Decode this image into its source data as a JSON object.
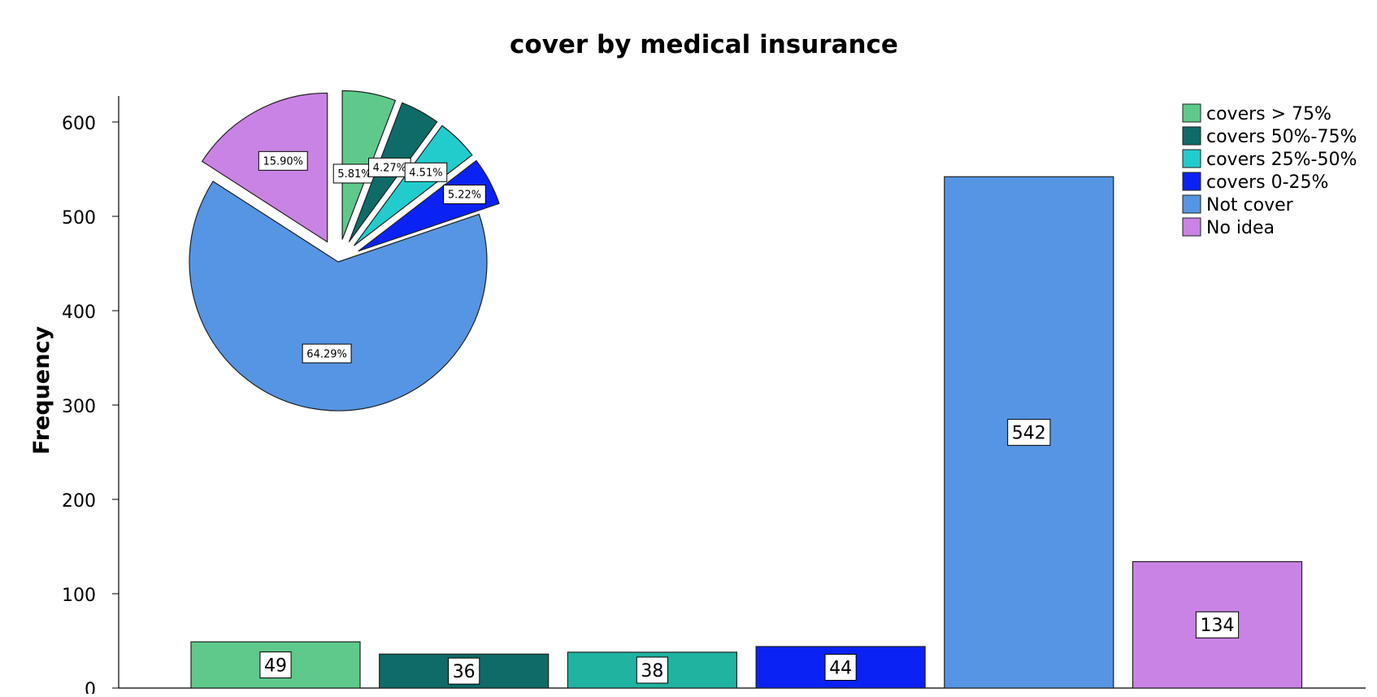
{
  "chart_data": [
    {
      "type": "bar",
      "title": "cover by medical insurance",
      "xlabel": "",
      "ylabel": "Frequency",
      "ylim": [
        0,
        630
      ],
      "yticks": [
        0,
        100,
        200,
        300,
        400,
        500,
        600
      ],
      "grid": false,
      "legend_position": "top-right",
      "categories": [
        "covers > 75%",
        "covers 50%-75%",
        "covers 25%-50%",
        "covers 0-25%",
        "Not cover",
        "No idea"
      ],
      "values": [
        49,
        36,
        38,
        44,
        542,
        134
      ],
      "colors": [
        "#5ec98a",
        "#0e6b67",
        "#1fb3a0",
        "#0b22f5",
        "#5595e3",
        "#c983e5"
      ],
      "data_labels": [
        "49",
        "36",
        "38",
        "44",
        "542",
        "134"
      ]
    },
    {
      "type": "pie",
      "placement": "inset top-left",
      "exploded": true,
      "categories": [
        "covers > 75%",
        "covers 50%-75%",
        "covers 25%-50%",
        "covers 0-25%",
        "Not cover",
        "No idea"
      ],
      "values": [
        5.81,
        4.27,
        4.51,
        5.22,
        64.29,
        15.9
      ],
      "labels": [
        "5.81%",
        "4.27%",
        "4.51%",
        "5.22%",
        "64.29%",
        "15.90%"
      ],
      "colors": [
        "#5ec98a",
        "#0e6b67",
        "#22cccc",
        "#0b22f5",
        "#5595e3",
        "#c983e5"
      ]
    }
  ],
  "legend": {
    "items": [
      {
        "label": "covers > 75%",
        "color": "#5ec98a"
      },
      {
        "label": "covers 50%-75%",
        "color": "#0e6b67"
      },
      {
        "label": "covers 25%-50%",
        "color": "#22cccc"
      },
      {
        "label": "covers 0-25%",
        "color": "#0b22f5"
      },
      {
        "label": "Not cover",
        "color": "#5595e3"
      },
      {
        "label": "No idea",
        "color": "#c983e5"
      }
    ]
  }
}
